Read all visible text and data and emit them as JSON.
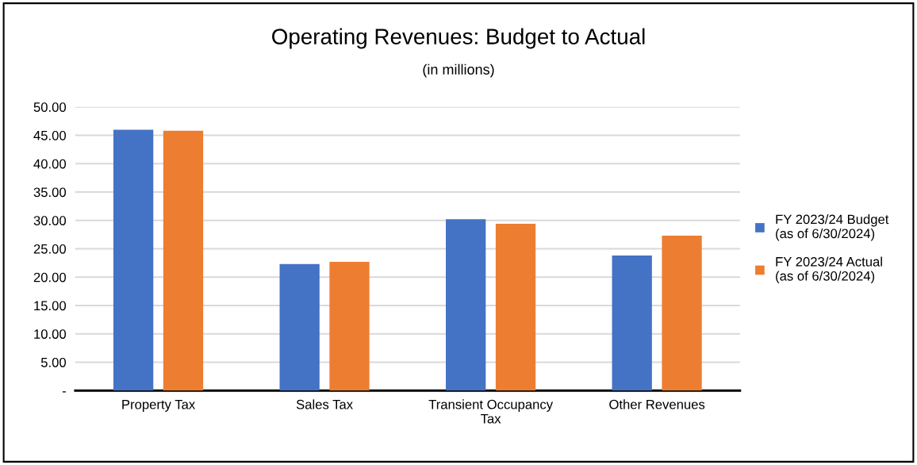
{
  "chart_data": {
    "type": "bar",
    "title": "Operating Revenues: Budget to Actual",
    "subtitle": "(in millions)",
    "categories": [
      "Property Tax",
      "Sales Tax",
      "Transient Occupancy\nTax",
      "Other Revenues"
    ],
    "series": [
      {
        "name": "FY 2023/24 Budget\n(as of 6/30/2024)",
        "color": "#4472c4",
        "values": [
          46.0,
          22.3,
          30.2,
          23.8
        ]
      },
      {
        "name": "FY 2023/24 Actual\n(as of 6/30/2024)",
        "color": "#ed7d31",
        "values": [
          45.8,
          22.7,
          29.4,
          27.3
        ]
      }
    ],
    "ylim": [
      0,
      50
    ],
    "yticks": [
      {
        "value": 0,
        "label": "-"
      },
      {
        "value": 5,
        "label": "5.00"
      },
      {
        "value": 10,
        "label": "10.00"
      },
      {
        "value": 15,
        "label": "15.00"
      },
      {
        "value": 20,
        "label": "20.00"
      },
      {
        "value": 25,
        "label": "25.00"
      },
      {
        "value": 30,
        "label": "30.00"
      },
      {
        "value": 35,
        "label": "35.00"
      },
      {
        "value": 40,
        "label": "40.00"
      },
      {
        "value": 45,
        "label": "45.00"
      },
      {
        "value": 50,
        "label": "50.00"
      }
    ],
    "grid": "y",
    "legend": "right"
  }
}
